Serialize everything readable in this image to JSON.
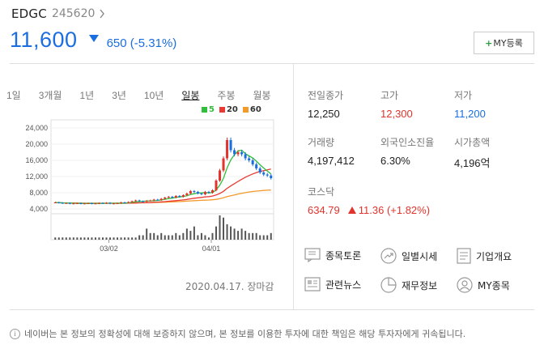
{
  "stock": {
    "name": "EDGC",
    "code": "245620",
    "price": "11,600",
    "change": "650 (-5.31%)",
    "my_button_label": "MY등록"
  },
  "periods": [
    "1일",
    "3개월",
    "1년",
    "3년",
    "10년",
    "일봉",
    "주봉",
    "월봉"
  ],
  "chart_data": {
    "type": "candlestick",
    "legend": [
      {
        "name": "5",
        "color": "#2fbf3a"
      },
      {
        "name": "20",
        "color": "#e83a32"
      },
      {
        "name": "60",
        "color": "#f39a2b"
      }
    ],
    "yticks": [
      "24,000",
      "20,000",
      "16,000",
      "12,000",
      "8,000",
      "4,000"
    ],
    "ylim": [
      4000,
      24000
    ],
    "xticks": [
      "03/02",
      "04/01"
    ],
    "close_series": [
      5600,
      5500,
      5400,
      5450,
      5300,
      5350,
      5400,
      5300,
      5350,
      5400,
      5300,
      5350,
      5450,
      5400,
      5500,
      5300,
      5350,
      5400,
      5600,
      5500,
      5700,
      5900,
      6100,
      5900,
      5800,
      6000,
      6100,
      6300,
      6200,
      6500,
      6800,
      7000,
      6800,
      7200,
      7000,
      7400,
      7800,
      8400,
      8200,
      7800,
      7600,
      8200,
      8000,
      8600,
      11000,
      13500,
      16500,
      21000,
      18500,
      17500,
      18000,
      17500,
      16500,
      16000,
      15000,
      14000,
      13000,
      12500,
      12250,
      11600
    ],
    "volume_series": [
      1,
      1,
      1,
      1,
      1,
      1,
      1,
      1,
      1,
      1,
      1,
      1,
      1,
      1,
      1,
      1,
      1,
      1,
      1,
      1,
      1,
      1,
      1,
      2,
      2,
      5,
      3,
      3,
      2,
      3,
      2,
      2,
      2,
      3,
      2,
      3,
      5,
      4,
      6,
      2,
      3,
      2,
      1,
      3,
      6,
      11,
      10,
      7,
      6,
      5,
      4,
      5,
      4,
      3,
      3,
      3,
      2,
      2,
      2,
      3
    ]
  },
  "timestamp": "2020.04.17. 장마감",
  "info": {
    "prev_close": {
      "label": "전일종가",
      "value": "12,250"
    },
    "high": {
      "label": "고가",
      "value": "12,300"
    },
    "low": {
      "label": "저가",
      "value": "11,200"
    },
    "volume": {
      "label": "거래량",
      "value": "4,197,412"
    },
    "foreign": {
      "label": "외국인소진율",
      "value": "6.30%"
    },
    "market_cap": {
      "label": "시가총액",
      "value": "4,196억"
    },
    "kosdaq": {
      "label": "코스닥",
      "value": "634.79",
      "change": "11.36 (+1.82%)"
    }
  },
  "links": {
    "discussion": "종목토론",
    "daily": "일별시세",
    "company": "기업개요",
    "news": "관련뉴스",
    "financial": "재무정보",
    "my_stocks": "MY종목"
  },
  "disclaimer": "네이버는 본 정보의 정확성에 대해 보증하지 않으며, 본 정보를 이용한 투자에 대한 책임은 해당 투자자에게 귀속됩니다."
}
